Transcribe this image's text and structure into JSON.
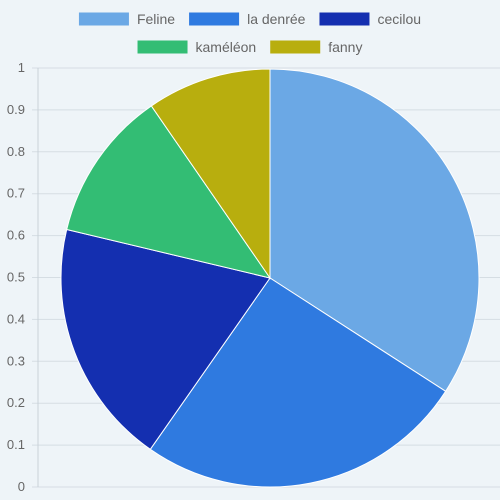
{
  "chart_data": {
    "type": "pie",
    "title": "",
    "categories": [
      "Feline",
      "la denrée",
      "cecilou",
      "kaméléon",
      "fanny"
    ],
    "values": [
      34.8,
      26.1,
      19.4,
      11.9,
      9.8
    ],
    "colors": [
      "#6ba8e5",
      "#2f7ae0",
      "#142fb0",
      "#33bd74",
      "#b8ae0e"
    ],
    "legend_position": "top",
    "y_axis": {
      "ticks": [
        "0",
        "0.1",
        "0.2",
        "0.3",
        "0.4",
        "0.5",
        "0.6",
        "0.7",
        "0.8",
        "0.9",
        "1"
      ],
      "ylim": [
        0,
        1
      ],
      "grid": true
    }
  }
}
